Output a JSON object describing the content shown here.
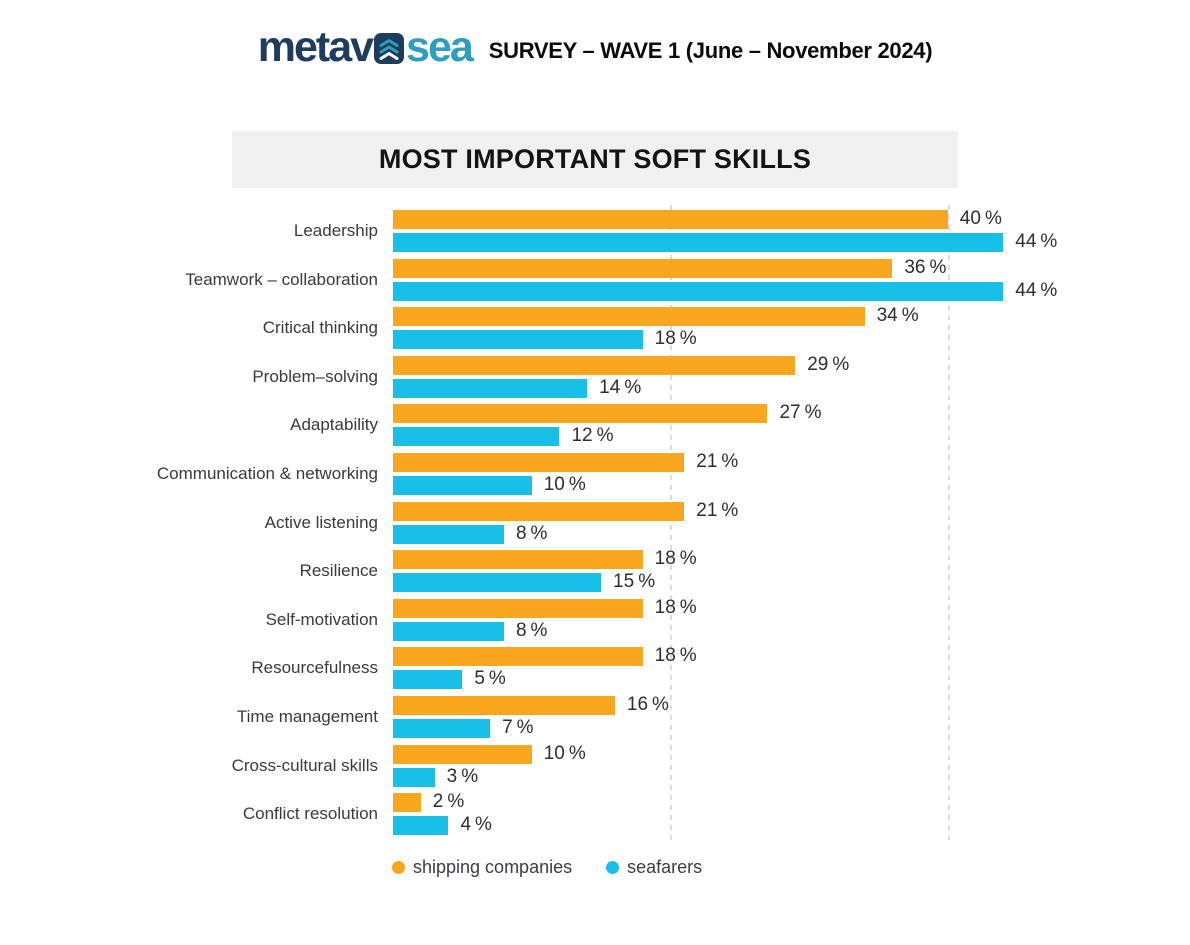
{
  "header": {
    "logo": {
      "primary": "metav",
      "secondary": "sea"
    },
    "survey_label": "SURVEY – WAVE 1 (June – November 2024)"
  },
  "title_banner": {
    "text": "MOST IMPORTANT SOFT SKILLS"
  },
  "chart_data": {
    "type": "bar",
    "orientation": "horizontal",
    "title": "MOST IMPORTANT SOFT SKILLS",
    "categories": [
      "Leadership",
      "Teamwork – collaboration",
      "Critical thinking",
      "Problem–solving",
      "Adaptability",
      "Communication & networking",
      "Active listening",
      "Resilience",
      "Self-motivation",
      "Resourcefulness",
      "Time management",
      "Cross-cultural skills",
      "Conflict resolution"
    ],
    "series": [
      {
        "name": "shipping companies",
        "color": "#F8A61D",
        "values": [
          40,
          36,
          34,
          29,
          27,
          21,
          21,
          18,
          18,
          18,
          16,
          10,
          2
        ]
      },
      {
        "name": "seafarers",
        "color": "#18C0E8",
        "values": [
          44,
          44,
          18,
          14,
          12,
          10,
          8,
          15,
          8,
          5,
          7,
          3,
          4
        ]
      }
    ],
    "value_suffix": "%",
    "xlim": [
      0,
      44
    ],
    "gridlines_at": [
      20,
      40
    ],
    "grid_style": "dashed-vertical",
    "legend_position": "bottom"
  },
  "colors": {
    "bar_orange": "#F8A61D",
    "bar_cyan": "#18C0E8",
    "logo_navy": "#1E3C5C",
    "logo_teal": "#2E9EC0",
    "title_banner_bg": "#F0F0F0",
    "text_dark": "#2E2E2E",
    "gridline": "#DCDCDC"
  }
}
